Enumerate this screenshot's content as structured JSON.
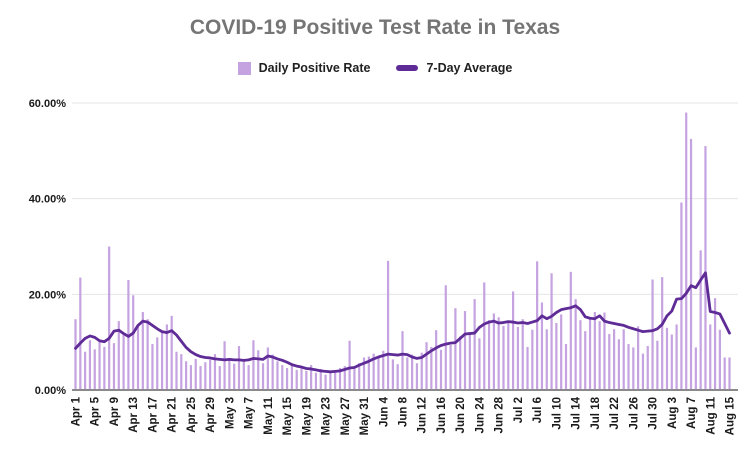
{
  "title": "COVID-19 Positive Test Rate in Texas",
  "legend": {
    "daily_label": "Daily Positive Rate",
    "average_label": "7-Day Average"
  },
  "colors": {
    "bar": "#c5a2e0",
    "line": "#5e2b97",
    "title_text": "#757575",
    "axis_text": "#1a1a1a",
    "gridline": "#e4e4e4",
    "baseline": "#8a8a8a",
    "background": "#ffffff"
  },
  "chart_data": {
    "type": "bar",
    "title": "COVID-19 Positive Test Rate in Texas",
    "grid": "horizontal",
    "legend_position": "top",
    "ylim": [
      0,
      60
    ],
    "y_ticks": [
      "0.00%",
      "20.00%",
      "40.00%",
      "60.00%"
    ],
    "y_tick_values": [
      0,
      20,
      40,
      60
    ],
    "x_tick_interval_days": 4,
    "x_first_tick": "Apr 1",
    "x_last_tick": "Aug 15",
    "categories": [
      "Apr 1",
      "Apr 2",
      "Apr 3",
      "Apr 4",
      "Apr 5",
      "Apr 6",
      "Apr 7",
      "Apr 8",
      "Apr 9",
      "Apr 10",
      "Apr 11",
      "Apr 12",
      "Apr 13",
      "Apr 14",
      "Apr 15",
      "Apr 16",
      "Apr 17",
      "Apr 18",
      "Apr 19",
      "Apr 20",
      "Apr 21",
      "Apr 22",
      "Apr 23",
      "Apr 24",
      "Apr 25",
      "Apr 26",
      "Apr 27",
      "Apr 28",
      "Apr 29",
      "Apr 30",
      "May 1",
      "May 2",
      "May 3",
      "May 4",
      "May 5",
      "May 6",
      "May 7",
      "May 8",
      "May 9",
      "May 10",
      "May 11",
      "May 12",
      "May 13",
      "May 14",
      "May 15",
      "May 16",
      "May 17",
      "May 18",
      "May 19",
      "May 20",
      "May 21",
      "May 22",
      "May 23",
      "May 24",
      "May 25",
      "May 26",
      "May 27",
      "May 28",
      "May 29",
      "May 30",
      "May 31",
      "Jun 1",
      "Jun 2",
      "Jun 3",
      "Jun 4",
      "Jun 5",
      "Jun 6",
      "Jun 7",
      "Jun 8",
      "Jun 9",
      "Jun 10",
      "Jun 11",
      "Jun 12",
      "Jun 13",
      "Jun 14",
      "Jun 15",
      "Jun 16",
      "Jun 17",
      "Jun 18",
      "Jun 19",
      "Jun 20",
      "Jun 21",
      "Jun 22",
      "Jun 23",
      "Jun 24",
      "Jun 25",
      "Jun 26",
      "Jun 27",
      "Jun 28",
      "Jun 29",
      "Jun 30",
      "Jul 1",
      "Jul 2",
      "Jul 3",
      "Jul 4",
      "Jul 5",
      "Jul 6",
      "Jul 7",
      "Jul 8",
      "Jul 9",
      "Jul 10",
      "Jul 11",
      "Jul 12",
      "Jul 13",
      "Jul 14",
      "Jul 15",
      "Jul 16",
      "Jul 17",
      "Jul 18",
      "Jul 19",
      "Jul 20",
      "Jul 21",
      "Jul 22",
      "Jul 23",
      "Jul 24",
      "Jul 25",
      "Jul 26",
      "Jul 27",
      "Jul 28",
      "Jul 29",
      "Jul 30",
      "Jul 31",
      "Aug 1",
      "Aug 2",
      "Aug 3",
      "Aug 4",
      "Aug 5",
      "Aug 6",
      "Aug 7",
      "Aug 8",
      "Aug 9",
      "Aug 10",
      "Aug 11",
      "Aug 12",
      "Aug 13",
      "Aug 14",
      "Aug 15"
    ],
    "series": [
      {
        "name": "Daily Positive Rate",
        "type": "bar",
        "color": "#c5a2e0",
        "unit": "%",
        "values": [
          14.8,
          23.5,
          8,
          10.4,
          8.5,
          10.4,
          9,
          30,
          9.8,
          14.4,
          12,
          23,
          19.8,
          13.5,
          16.3,
          14.8,
          9.6,
          11,
          12,
          13.7,
          15.5,
          8,
          7.5,
          6,
          5.2,
          6.5,
          5,
          5.8,
          6.3,
          7.5,
          5,
          10.2,
          6.3,
          5.5,
          9.2,
          6,
          5.2,
          10.4,
          8.3,
          5.6,
          8.9,
          7.4,
          6,
          5.2,
          4.6,
          5.4,
          4.2,
          4.8,
          4,
          5.2,
          3.6,
          4.4,
          3.2,
          4,
          3.8,
          4.6,
          5,
          10.3,
          4.4,
          5.6,
          6.8,
          7,
          7.6,
          6.8,
          8.2,
          27,
          6.4,
          5.4,
          12.3,
          6.8,
          7.4,
          5.6,
          7.8,
          10,
          9,
          12.5,
          8.4,
          21.9,
          9.4,
          17.1,
          11.2,
          16.5,
          12,
          19,
          10.8,
          22.5,
          14.6,
          16,
          15.2,
          13.4,
          14,
          20.6,
          13.2,
          14.8,
          9,
          12.6,
          26.9,
          18.3,
          12.7,
          24.4,
          14,
          15.8,
          9.6,
          24.7,
          19,
          14.6,
          12.3,
          14.8,
          16.3,
          14.4,
          16.2,
          11.7,
          12.7,
          10.6,
          12.7,
          9.6,
          8.9,
          13.3,
          7.6,
          9.2,
          23.1,
          10.3,
          23.6,
          13,
          11.6,
          13.7,
          39.2,
          58,
          52.5,
          8.9,
          29.2,
          51,
          13.7,
          19.2,
          12.6,
          6.8,
          6.8
        ]
      },
      {
        "name": "7-Day Average",
        "type": "line",
        "color": "#5e2b97",
        "unit": "%",
        "values": [
          8.7,
          9.8,
          10.8,
          11.3,
          11,
          10.3,
          10.1,
          10.8,
          12.3,
          12.5,
          11.8,
          11.2,
          11.9,
          13.5,
          14.4,
          14.2,
          13.5,
          12.8,
          12.2,
          12,
          12.4,
          11.5,
          10.2,
          8.9,
          8,
          7.4,
          7,
          6.8,
          6.7,
          6.5,
          6.4,
          6.3,
          6.4,
          6.3,
          6.3,
          6.2,
          6.3,
          6.6,
          6.5,
          6.4,
          7.1,
          6.9,
          6.5,
          6.2,
          5.8,
          5.3,
          5,
          4.8,
          4.5,
          4.4,
          4.2,
          4,
          3.9,
          3.8,
          3.9,
          4,
          4.3,
          4.6,
          4.7,
          5.2,
          5.6,
          6,
          6.5,
          6.9,
          7.2,
          7.5,
          7.4,
          7.3,
          7.5,
          7.4,
          6.9,
          6.6,
          6.8,
          7.5,
          8.2,
          8.8,
          9.3,
          9.6,
          9.8,
          9.9,
          10.8,
          11.7,
          11.8,
          11.9,
          13.1,
          13.8,
          14.2,
          14.4,
          14,
          14.1,
          14.3,
          14.2,
          14,
          14.1,
          13.9,
          14.2,
          14.5,
          15.5,
          14.9,
          15.4,
          16.2,
          16.8,
          17,
          17.2,
          17.6,
          16.8,
          15.3,
          15,
          14.9,
          15.5,
          14.4,
          14.1,
          13.9,
          13.7,
          13.5,
          13.1,
          12.8,
          12.5,
          12.2,
          12.3,
          12.4,
          12.8,
          13.7,
          15.5,
          16.5,
          19,
          19.1,
          20.2,
          21.8,
          21.4,
          23,
          24.5,
          16.4,
          16.2,
          15.9,
          13.9,
          11.9
        ]
      }
    ]
  }
}
